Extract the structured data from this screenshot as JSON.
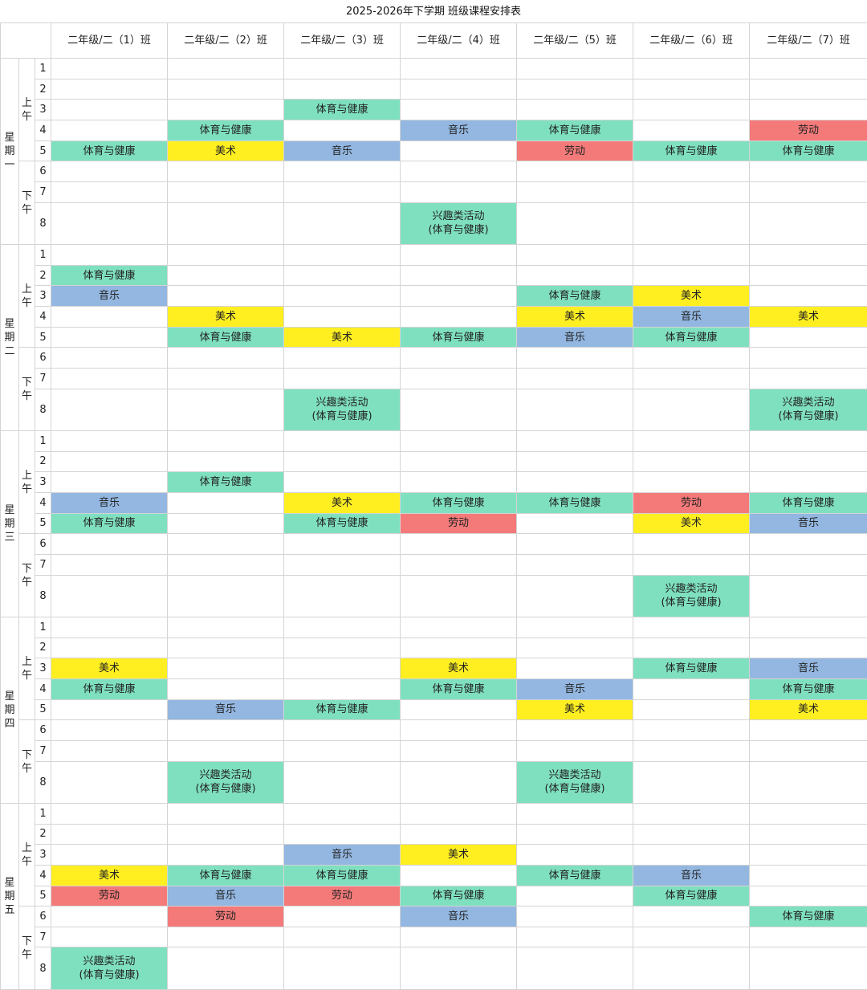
{
  "title": "2025-2026年下学期 班级课程安排表",
  "columns": [
    "二年级/二（1）班",
    "二年级/二（2）班",
    "二年级/二（3）班",
    "二年级/二（4）班",
    "二年级/二（5）班",
    "二年级/二（6）班",
    "二年级/二（7）班"
  ],
  "half_labels": [
    "上午",
    "下午"
  ],
  "colors": {
    "pe": "#7fe0c0",
    "music": "#93b7e0",
    "art": "#ffef21",
    "labor": "#f47a7a",
    "club": "#7fe0c0"
  },
  "days": [
    {
      "label": "星期一",
      "periods": [
        {
          "n": "1",
          "cells": [
            "",
            "",
            "",
            "",
            "",
            "",
            ""
          ]
        },
        {
          "n": "2",
          "cells": [
            "",
            "",
            "",
            "",
            "",
            "",
            ""
          ]
        },
        {
          "n": "3",
          "cells": [
            "",
            "",
            "体育与健康",
            "",
            "",
            "",
            ""
          ]
        },
        {
          "n": "4",
          "cells": [
            "",
            "体育与健康",
            "",
            "音乐",
            "体育与健康",
            "",
            "劳动"
          ]
        },
        {
          "n": "5",
          "cells": [
            "体育与健康",
            "美术",
            "音乐",
            "",
            "劳动",
            "体育与健康",
            "体育与健康"
          ]
        },
        {
          "n": "6",
          "cells": [
            "",
            "",
            "",
            "",
            "",
            "",
            ""
          ]
        },
        {
          "n": "7",
          "cells": [
            "",
            "",
            "",
            "",
            "",
            "",
            ""
          ]
        },
        {
          "n": "8",
          "cells": [
            "",
            "",
            "",
            "兴趣类活动\n(体育与健康)",
            "",
            "",
            ""
          ]
        }
      ]
    },
    {
      "label": "星期二",
      "periods": [
        {
          "n": "1",
          "cells": [
            "",
            "",
            "",
            "",
            "",
            "",
            ""
          ]
        },
        {
          "n": "2",
          "cells": [
            "体育与健康",
            "",
            "",
            "",
            "",
            "",
            ""
          ]
        },
        {
          "n": "3",
          "cells": [
            "音乐",
            "",
            "",
            "",
            "体育与健康",
            "美术",
            ""
          ]
        },
        {
          "n": "4",
          "cells": [
            "",
            "美术",
            "",
            "",
            "美术",
            "音乐",
            "美术"
          ]
        },
        {
          "n": "5",
          "cells": [
            "",
            "体育与健康",
            "美术",
            "体育与健康",
            "音乐",
            "体育与健康",
            ""
          ]
        },
        {
          "n": "6",
          "cells": [
            "",
            "",
            "",
            "",
            "",
            "",
            ""
          ]
        },
        {
          "n": "7",
          "cells": [
            "",
            "",
            "",
            "",
            "",
            "",
            ""
          ]
        },
        {
          "n": "8",
          "cells": [
            "",
            "",
            "兴趣类活动\n(体育与健康)",
            "",
            "",
            "",
            "兴趣类活动\n(体育与健康)"
          ]
        }
      ]
    },
    {
      "label": "星期三",
      "periods": [
        {
          "n": "1",
          "cells": [
            "",
            "",
            "",
            "",
            "",
            "",
            ""
          ]
        },
        {
          "n": "2",
          "cells": [
            "",
            "",
            "",
            "",
            "",
            "",
            ""
          ]
        },
        {
          "n": "3",
          "cells": [
            "",
            "体育与健康",
            "",
            "",
            "",
            "",
            ""
          ]
        },
        {
          "n": "4",
          "cells": [
            "音乐",
            "",
            "美术",
            "体育与健康",
            "体育与健康",
            "劳动",
            "体育与健康"
          ]
        },
        {
          "n": "5",
          "cells": [
            "体育与健康",
            "",
            "体育与健康",
            "劳动",
            "",
            "美术",
            "音乐"
          ]
        },
        {
          "n": "6",
          "cells": [
            "",
            "",
            "",
            "",
            "",
            "",
            ""
          ]
        },
        {
          "n": "7",
          "cells": [
            "",
            "",
            "",
            "",
            "",
            "",
            ""
          ]
        },
        {
          "n": "8",
          "cells": [
            "",
            "",
            "",
            "",
            "",
            "兴趣类活动\n(体育与健康)",
            ""
          ]
        }
      ]
    },
    {
      "label": "星期四",
      "periods": [
        {
          "n": "1",
          "cells": [
            "",
            "",
            "",
            "",
            "",
            "",
            ""
          ]
        },
        {
          "n": "2",
          "cells": [
            "",
            "",
            "",
            "",
            "",
            "",
            ""
          ]
        },
        {
          "n": "3",
          "cells": [
            "美术",
            "",
            "",
            "美术",
            "",
            "体育与健康",
            "音乐"
          ]
        },
        {
          "n": "4",
          "cells": [
            "体育与健康",
            "",
            "",
            "体育与健康",
            "音乐",
            "",
            "体育与健康"
          ]
        },
        {
          "n": "5",
          "cells": [
            "",
            "音乐",
            "体育与健康",
            "",
            "美术",
            "",
            "美术"
          ]
        },
        {
          "n": "6",
          "cells": [
            "",
            "",
            "",
            "",
            "",
            "",
            ""
          ]
        },
        {
          "n": "7",
          "cells": [
            "",
            "",
            "",
            "",
            "",
            "",
            ""
          ]
        },
        {
          "n": "8",
          "cells": [
            "",
            "兴趣类活动\n(体育与健康)",
            "",
            "",
            "兴趣类活动\n(体育与健康)",
            "",
            ""
          ]
        }
      ]
    },
    {
      "label": "星期五",
      "periods": [
        {
          "n": "1",
          "cells": [
            "",
            "",
            "",
            "",
            "",
            "",
            ""
          ]
        },
        {
          "n": "2",
          "cells": [
            "",
            "",
            "",
            "",
            "",
            "",
            ""
          ]
        },
        {
          "n": "3",
          "cells": [
            "",
            "",
            "音乐",
            "美术",
            "",
            "",
            ""
          ]
        },
        {
          "n": "4",
          "cells": [
            "美术",
            "体育与健康",
            "体育与健康",
            "",
            "体育与健康",
            "音乐",
            ""
          ]
        },
        {
          "n": "5",
          "cells": [
            "劳动",
            "音乐",
            "劳动",
            "体育与健康",
            "",
            "体育与健康",
            ""
          ]
        },
        {
          "n": "6",
          "cells": [
            "",
            "劳动",
            "",
            "音乐",
            "",
            "",
            "体育与健康"
          ]
        },
        {
          "n": "7",
          "cells": [
            "",
            "",
            "",
            "",
            "",
            "",
            ""
          ]
        },
        {
          "n": "8",
          "cells": [
            "兴趣类活动\n(体育与健康)",
            "",
            "",
            "",
            "",
            "",
            ""
          ]
        }
      ]
    }
  ]
}
